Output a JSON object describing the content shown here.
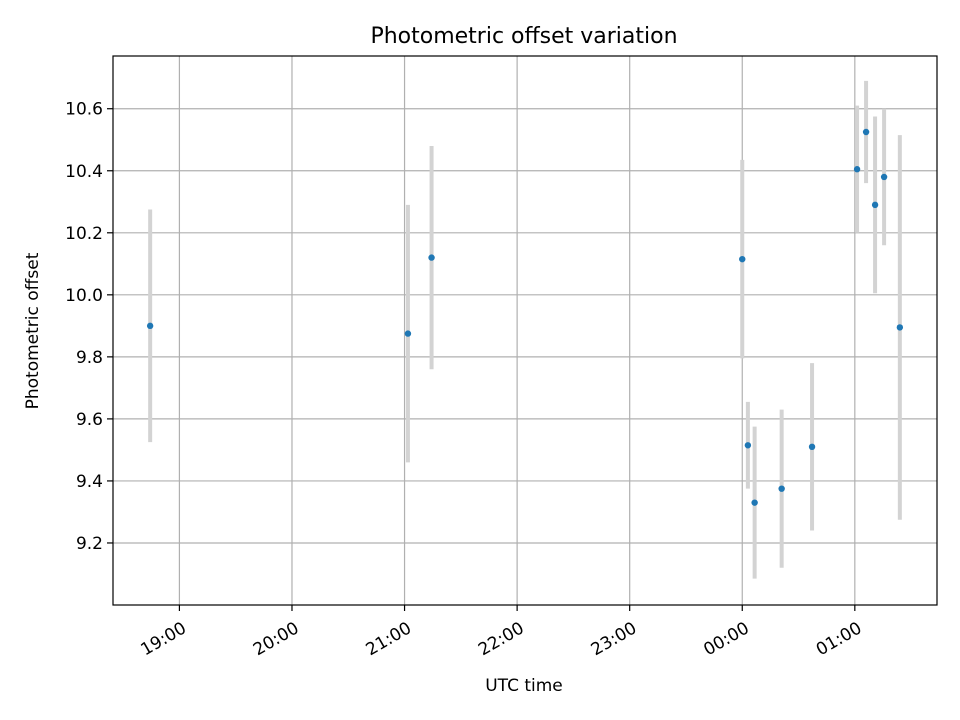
{
  "chart_data": {
    "type": "scatter",
    "title": "Photometric offset variation",
    "xlabel": "UTC time",
    "ylabel": "Photometric offset",
    "x_tick_labels": [
      "19:00",
      "20:00",
      "21:00",
      "22:00",
      "23:00",
      "00:00",
      "01:00"
    ],
    "x_tick_hours": [
      19,
      20,
      21,
      22,
      23,
      24,
      25
    ],
    "xlim_hours": [
      18.41,
      25.73
    ],
    "y_ticks": [
      9.2,
      9.4,
      9.6,
      9.8,
      10.0,
      10.2,
      10.4,
      10.6
    ],
    "y_tick_labels": [
      "9.2",
      "9.4",
      "9.6",
      "9.8",
      "10.0",
      "10.2",
      "10.4",
      "10.6"
    ],
    "ylim": [
      9.0,
      10.77
    ],
    "grid": true,
    "colors": {
      "point": "#1f77b4",
      "errorbar": "#d3d3d3",
      "grid": "#b0b0b0"
    },
    "points": [
      {
        "time": "18:44",
        "hour": 18.74,
        "y": 9.9,
        "err": 0.375
      },
      {
        "time": "21:02",
        "hour": 21.03,
        "y": 9.875,
        "err": 0.415
      },
      {
        "time": "21:14",
        "hour": 21.24,
        "y": 10.12,
        "err": 0.36
      },
      {
        "time": "24:00",
        "hour": 24.0,
        "y": 10.115,
        "err": 0.32
      },
      {
        "time": "00:03",
        "hour": 24.05,
        "y": 9.515,
        "err": 0.14
      },
      {
        "time": "00:06",
        "hour": 24.11,
        "y": 9.33,
        "err": 0.245
      },
      {
        "time": "00:21",
        "hour": 24.35,
        "y": 9.375,
        "err": 0.255
      },
      {
        "time": "00:37",
        "hour": 24.62,
        "y": 9.51,
        "err": 0.27
      },
      {
        "time": "01:01",
        "hour": 25.02,
        "y": 10.405,
        "err": 0.205
      },
      {
        "time": "01:06",
        "hour": 25.1,
        "y": 10.525,
        "err": 0.165
      },
      {
        "time": "01:10",
        "hour": 25.18,
        "y": 10.29,
        "err": 0.285
      },
      {
        "time": "01:15",
        "hour": 25.26,
        "y": 10.38,
        "err": 0.22
      },
      {
        "time": "01:24",
        "hour": 25.4,
        "y": 9.895,
        "err": 0.62
      }
    ]
  }
}
